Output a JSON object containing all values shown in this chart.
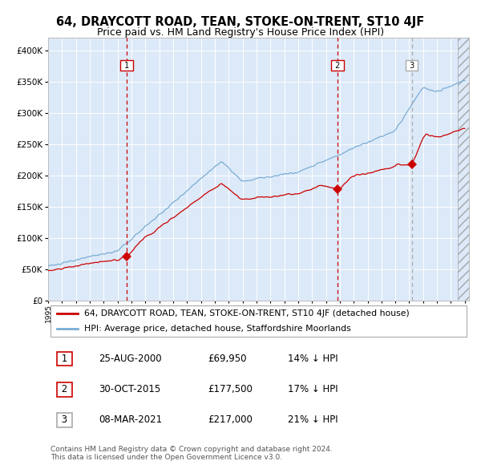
{
  "title": "64, DRAYCOTT ROAD, TEAN, STOKE-ON-TRENT, ST10 4JF",
  "subtitle": "Price paid vs. HM Land Registry's House Price Index (HPI)",
  "legend_label_red": "64, DRAYCOTT ROAD, TEAN, STOKE-ON-TRENT, ST10 4JF (detached house)",
  "legend_label_blue": "HPI: Average price, detached house, Staffordshire Moorlands",
  "transactions": [
    {
      "num": 1,
      "date": "25-AUG-2000",
      "price": 69950,
      "pct": "14%",
      "dir": "↓",
      "x_year": 2000.65
    },
    {
      "num": 2,
      "date": "30-OCT-2015",
      "price": 177500,
      "pct": "17%",
      "dir": "↓",
      "x_year": 2015.83
    },
    {
      "num": 3,
      "date": "08-MAR-2021",
      "price": 217000,
      "pct": "21%",
      "dir": "↓",
      "x_year": 2021.19
    }
  ],
  "footer1": "Contains HM Land Registry data © Crown copyright and database right 2024.",
  "footer2": "This data is licensed under the Open Government Licence v3.0.",
  "ylim": [
    0,
    420000
  ],
  "xlim_start": 1995.0,
  "xlim_end": 2025.3,
  "hatch_start": 2024.5,
  "bg_color": "#dce9f8",
  "red_color": "#cc0000",
  "blue_color": "#7aadd4",
  "grid_color": "#ffffff",
  "dashed_line_color": "#cc0000",
  "dashed_line3_color": "#aaaaaa",
  "sale_prices": [
    69950,
    177500,
    217000
  ]
}
